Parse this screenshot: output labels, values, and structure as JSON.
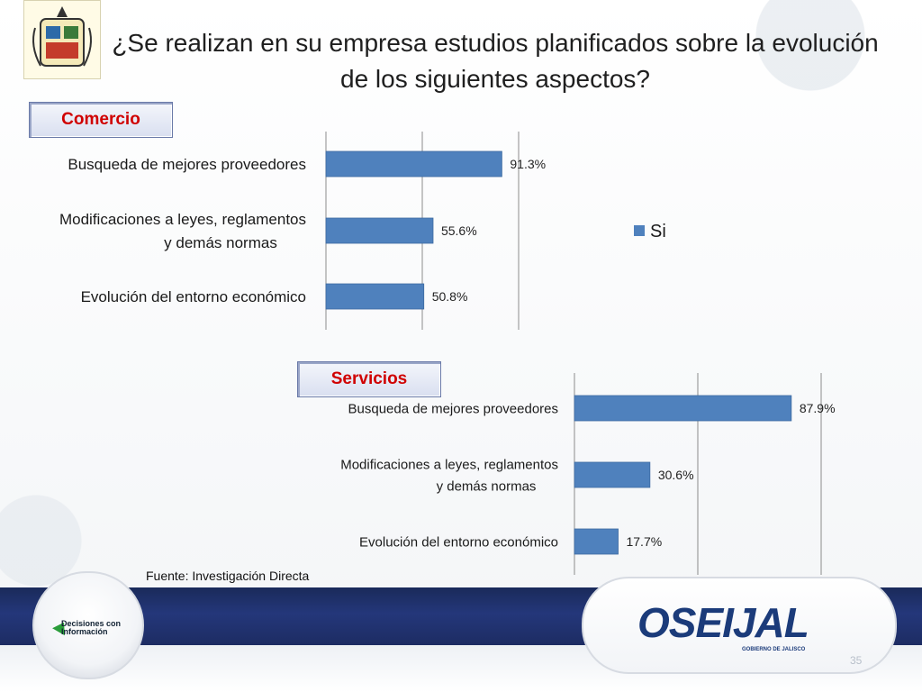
{
  "title": "¿Se realizan en su empresa estudios planificados sobre la evolución de los siguientes aspectos?",
  "fuente": "Fuente: Investigación Directa",
  "page_number": "35",
  "footer_left_label": "Decisiones con Información",
  "footer_right_label": "OSEIJAL",
  "footer_right_sublabel": "GOBIERNO DE JALISCO",
  "colors": {
    "bar": "#4f81bd",
    "tag_text": "#d00000",
    "band": "#1f2f6a"
  },
  "chart_data": [
    {
      "type": "bar",
      "orientation": "horizontal",
      "title": "Comercio",
      "categories": [
        "Busqueda de mejores proveedores",
        "Modificaciones a leyes, reglamentos y demás normas",
        "Evolución del entorno económico"
      ],
      "series": [
        {
          "name": "Si",
          "values": [
            91.3,
            55.6,
            50.8
          ]
        }
      ],
      "data_labels": [
        "91.3%",
        "55.6%",
        "50.8%"
      ],
      "xlim": [
        0,
        100
      ],
      "grid": true,
      "legend": "right"
    },
    {
      "type": "bar",
      "orientation": "horizontal",
      "title": "Servicios",
      "categories": [
        "Busqueda de mejores proveedores",
        "Modificaciones a leyes, reglamentos y demás normas",
        "Evolución del entorno económico"
      ],
      "series": [
        {
          "values": [
            87.9,
            30.6,
            17.7
          ]
        }
      ],
      "data_labels": [
        "87.9%",
        "30.6%",
        "17.7%"
      ],
      "xlim": [
        0,
        100
      ],
      "grid": true
    }
  ]
}
